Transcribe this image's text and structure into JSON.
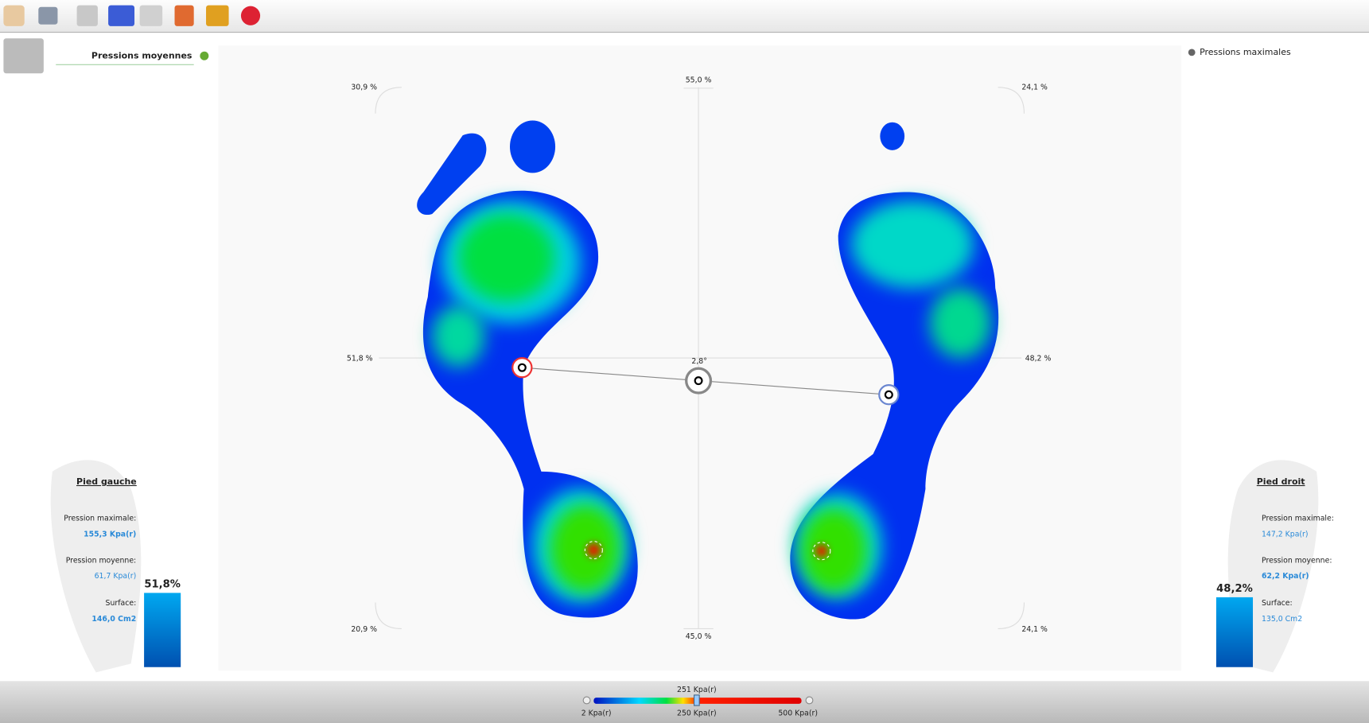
{
  "legend": {
    "left": "Pressions moyennes",
    "right": "Pressions maximales"
  },
  "plot": {
    "top_left": "30,9 %",
    "top": "55,0 %",
    "top_right": "24,1 %",
    "left": "51,8 %",
    "right": "48,2 %",
    "bottom_left": "20,9 %",
    "bottom": "45,0 %",
    "bottom_right": "24,1 %",
    "angle": "2,8°"
  },
  "left_foot": {
    "title": "Pied gauche",
    "max_label": "Pression maximale:",
    "max_value": "155,3 Kpa(r)",
    "mean_label": "Pression moyenne:",
    "mean_value": "61,7 Kpa(r)",
    "surface_label": "Surface:",
    "surface_value": "146,0 Cm2",
    "share": "51,8%"
  },
  "right_foot": {
    "title": "Pied droit",
    "max_label": "Pression maximale:",
    "max_value": "147,2 Kpa(r)",
    "mean_label": "Pression moyenne:",
    "mean_value": "62,2 Kpa(r)",
    "surface_label": "Surface:",
    "surface_value": "135,0 Cm2",
    "share": "48,2%"
  },
  "scale": {
    "current": "251 Kpa(r)",
    "min": "2 Kpa(r)",
    "mid": "250 Kpa(r)",
    "max": "500 Kpa(r)"
  }
}
